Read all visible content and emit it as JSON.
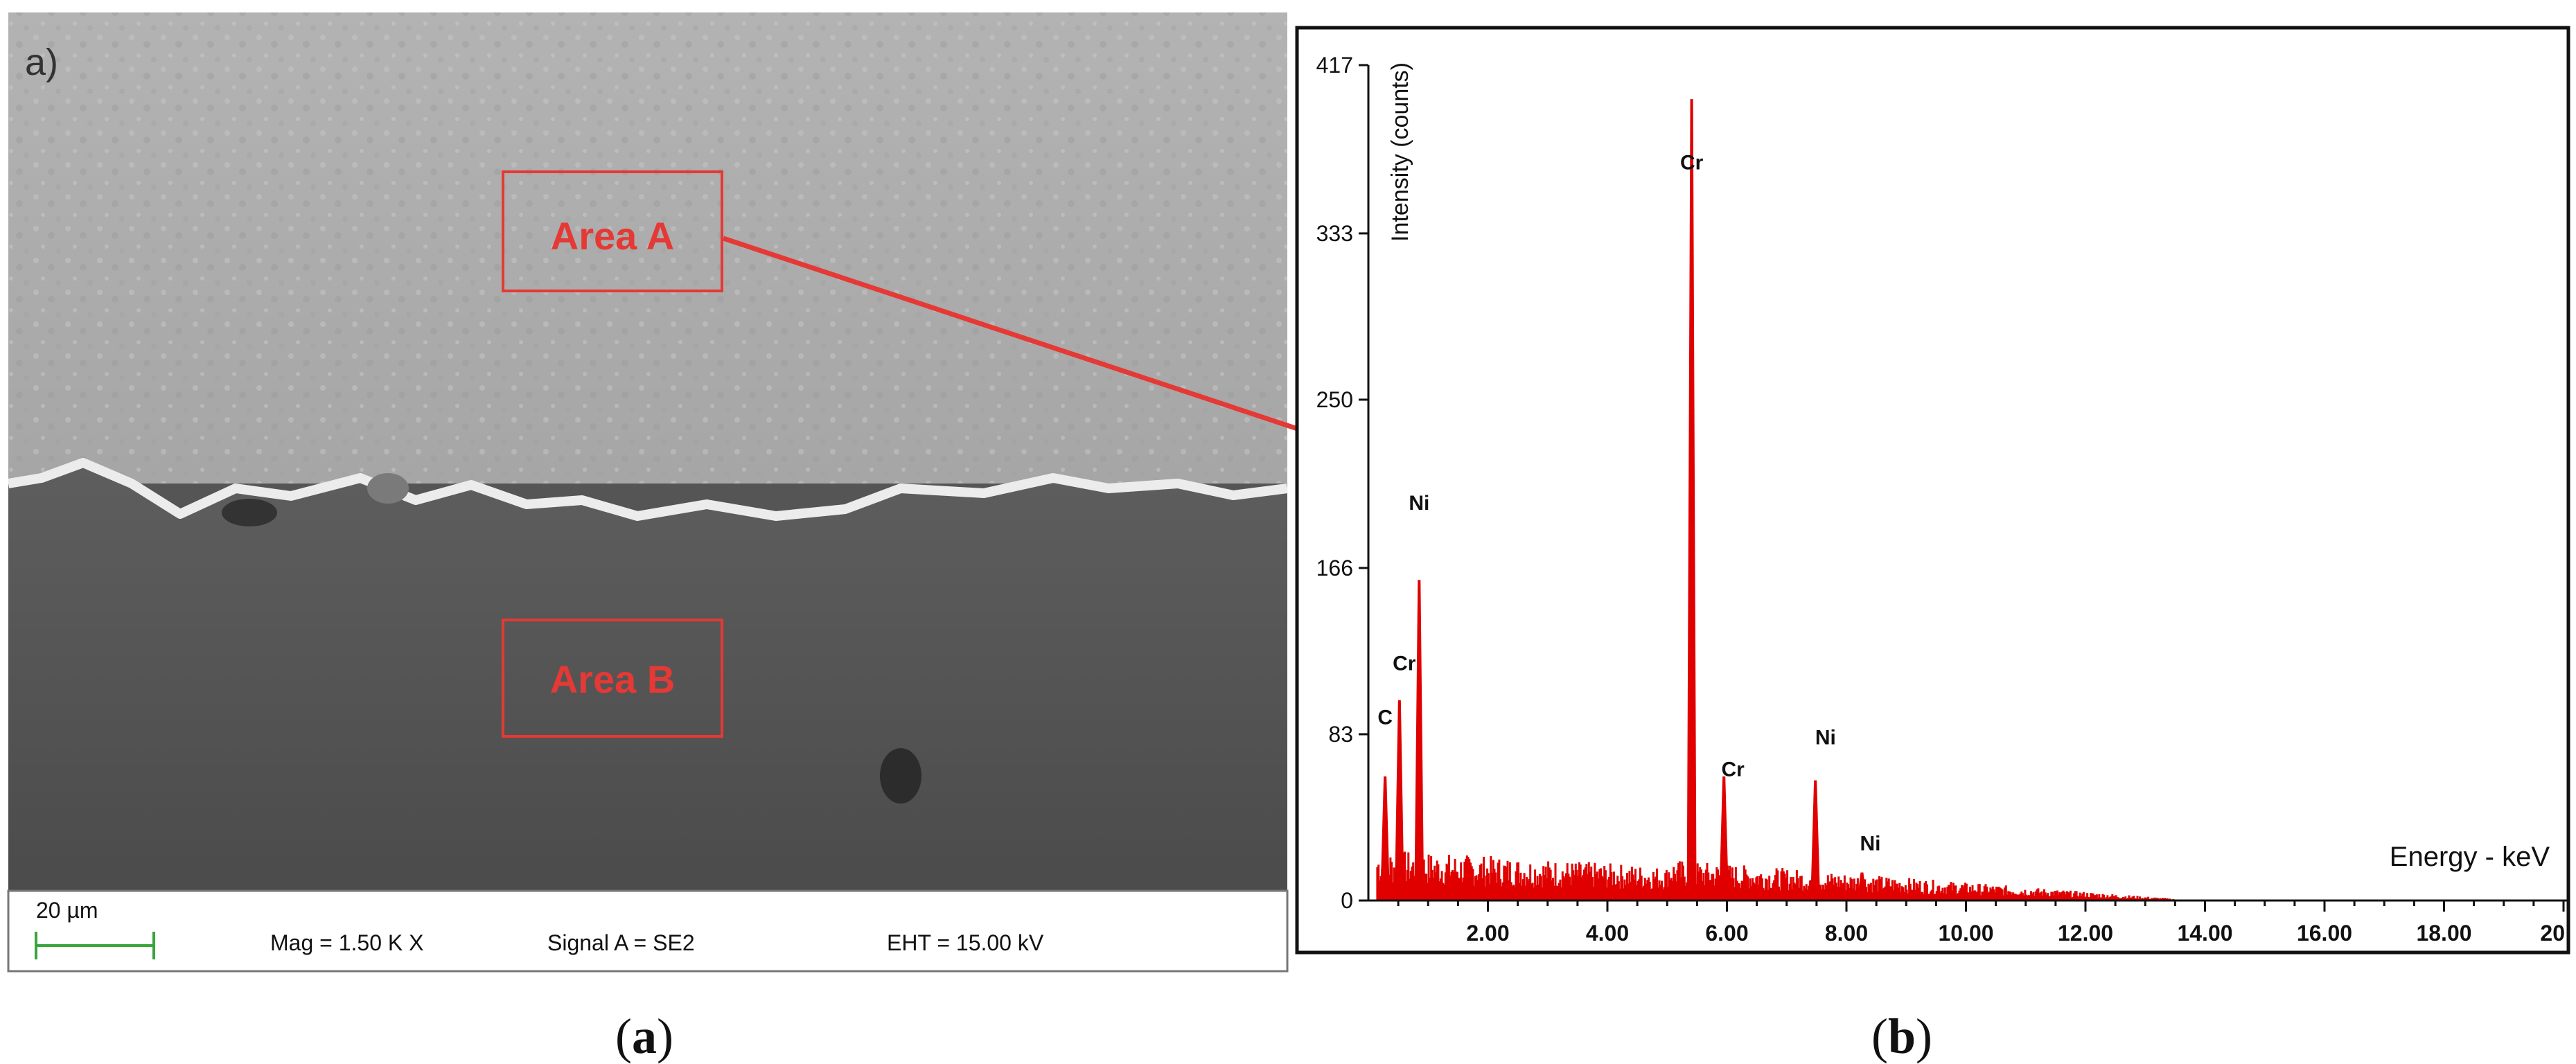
{
  "panel_a": {
    "corner_label": "a)",
    "area_a_label": "Area A",
    "area_b_label": "Area B",
    "scalebar_label": "20 µm",
    "mag": "Mag =  1.50 K X",
    "signal": "Signal A = SE2",
    "eht": "EHT = 15.00 kV",
    "annotation_color": "#e53935",
    "caption_open": "(",
    "caption_letter": "a",
    "caption_close": ")"
  },
  "panel_b": {
    "caption_open": "(",
    "caption_letter": "b",
    "caption_close": ")"
  },
  "chart_data": {
    "type": "bar",
    "xlabel": "Energy - keV",
    "ylabel": "Intensity (counts)",
    "xlim": [
      0,
      20
    ],
    "ylim": [
      0,
      417
    ],
    "x_ticks": [
      2,
      4,
      6,
      8,
      10,
      12,
      14,
      16,
      18,
      20
    ],
    "x_tick_labels": [
      "2.00",
      "4.00",
      "6.00",
      "8.00",
      "10.00",
      "12.00",
      "14.00",
      "16.00",
      "18.00",
      "20"
    ],
    "y_ticks": [
      0,
      83,
      166,
      250,
      333,
      417
    ],
    "y_tick_labels": [
      "0",
      "83",
      "166",
      "250",
      "333",
      "417"
    ],
    "series_color": "#e00000",
    "peaks": [
      {
        "energy": 0.28,
        "counts": 62
      },
      {
        "energy": 0.52,
        "counts": 100
      },
      {
        "energy": 0.85,
        "counts": 160
      },
      {
        "energy": 5.41,
        "counts": 400
      },
      {
        "energy": 5.95,
        "counts": 62
      },
      {
        "energy": 7.48,
        "counts": 60
      },
      {
        "energy": 8.26,
        "counts": 14
      }
    ],
    "peak_labels": [
      {
        "text": "C",
        "energy": 0.28,
        "counts": 88
      },
      {
        "text": "Cr",
        "energy": 0.6,
        "counts": 115
      },
      {
        "text": "Ni",
        "energy": 0.85,
        "counts": 195
      },
      {
        "text": "Cr",
        "energy": 5.41,
        "counts": 365
      },
      {
        "text": "Cr",
        "energy": 6.1,
        "counts": 62
      },
      {
        "text": "Ni",
        "energy": 7.65,
        "counts": 78
      },
      {
        "text": "Ni",
        "energy": 8.4,
        "counts": 25
      }
    ]
  }
}
